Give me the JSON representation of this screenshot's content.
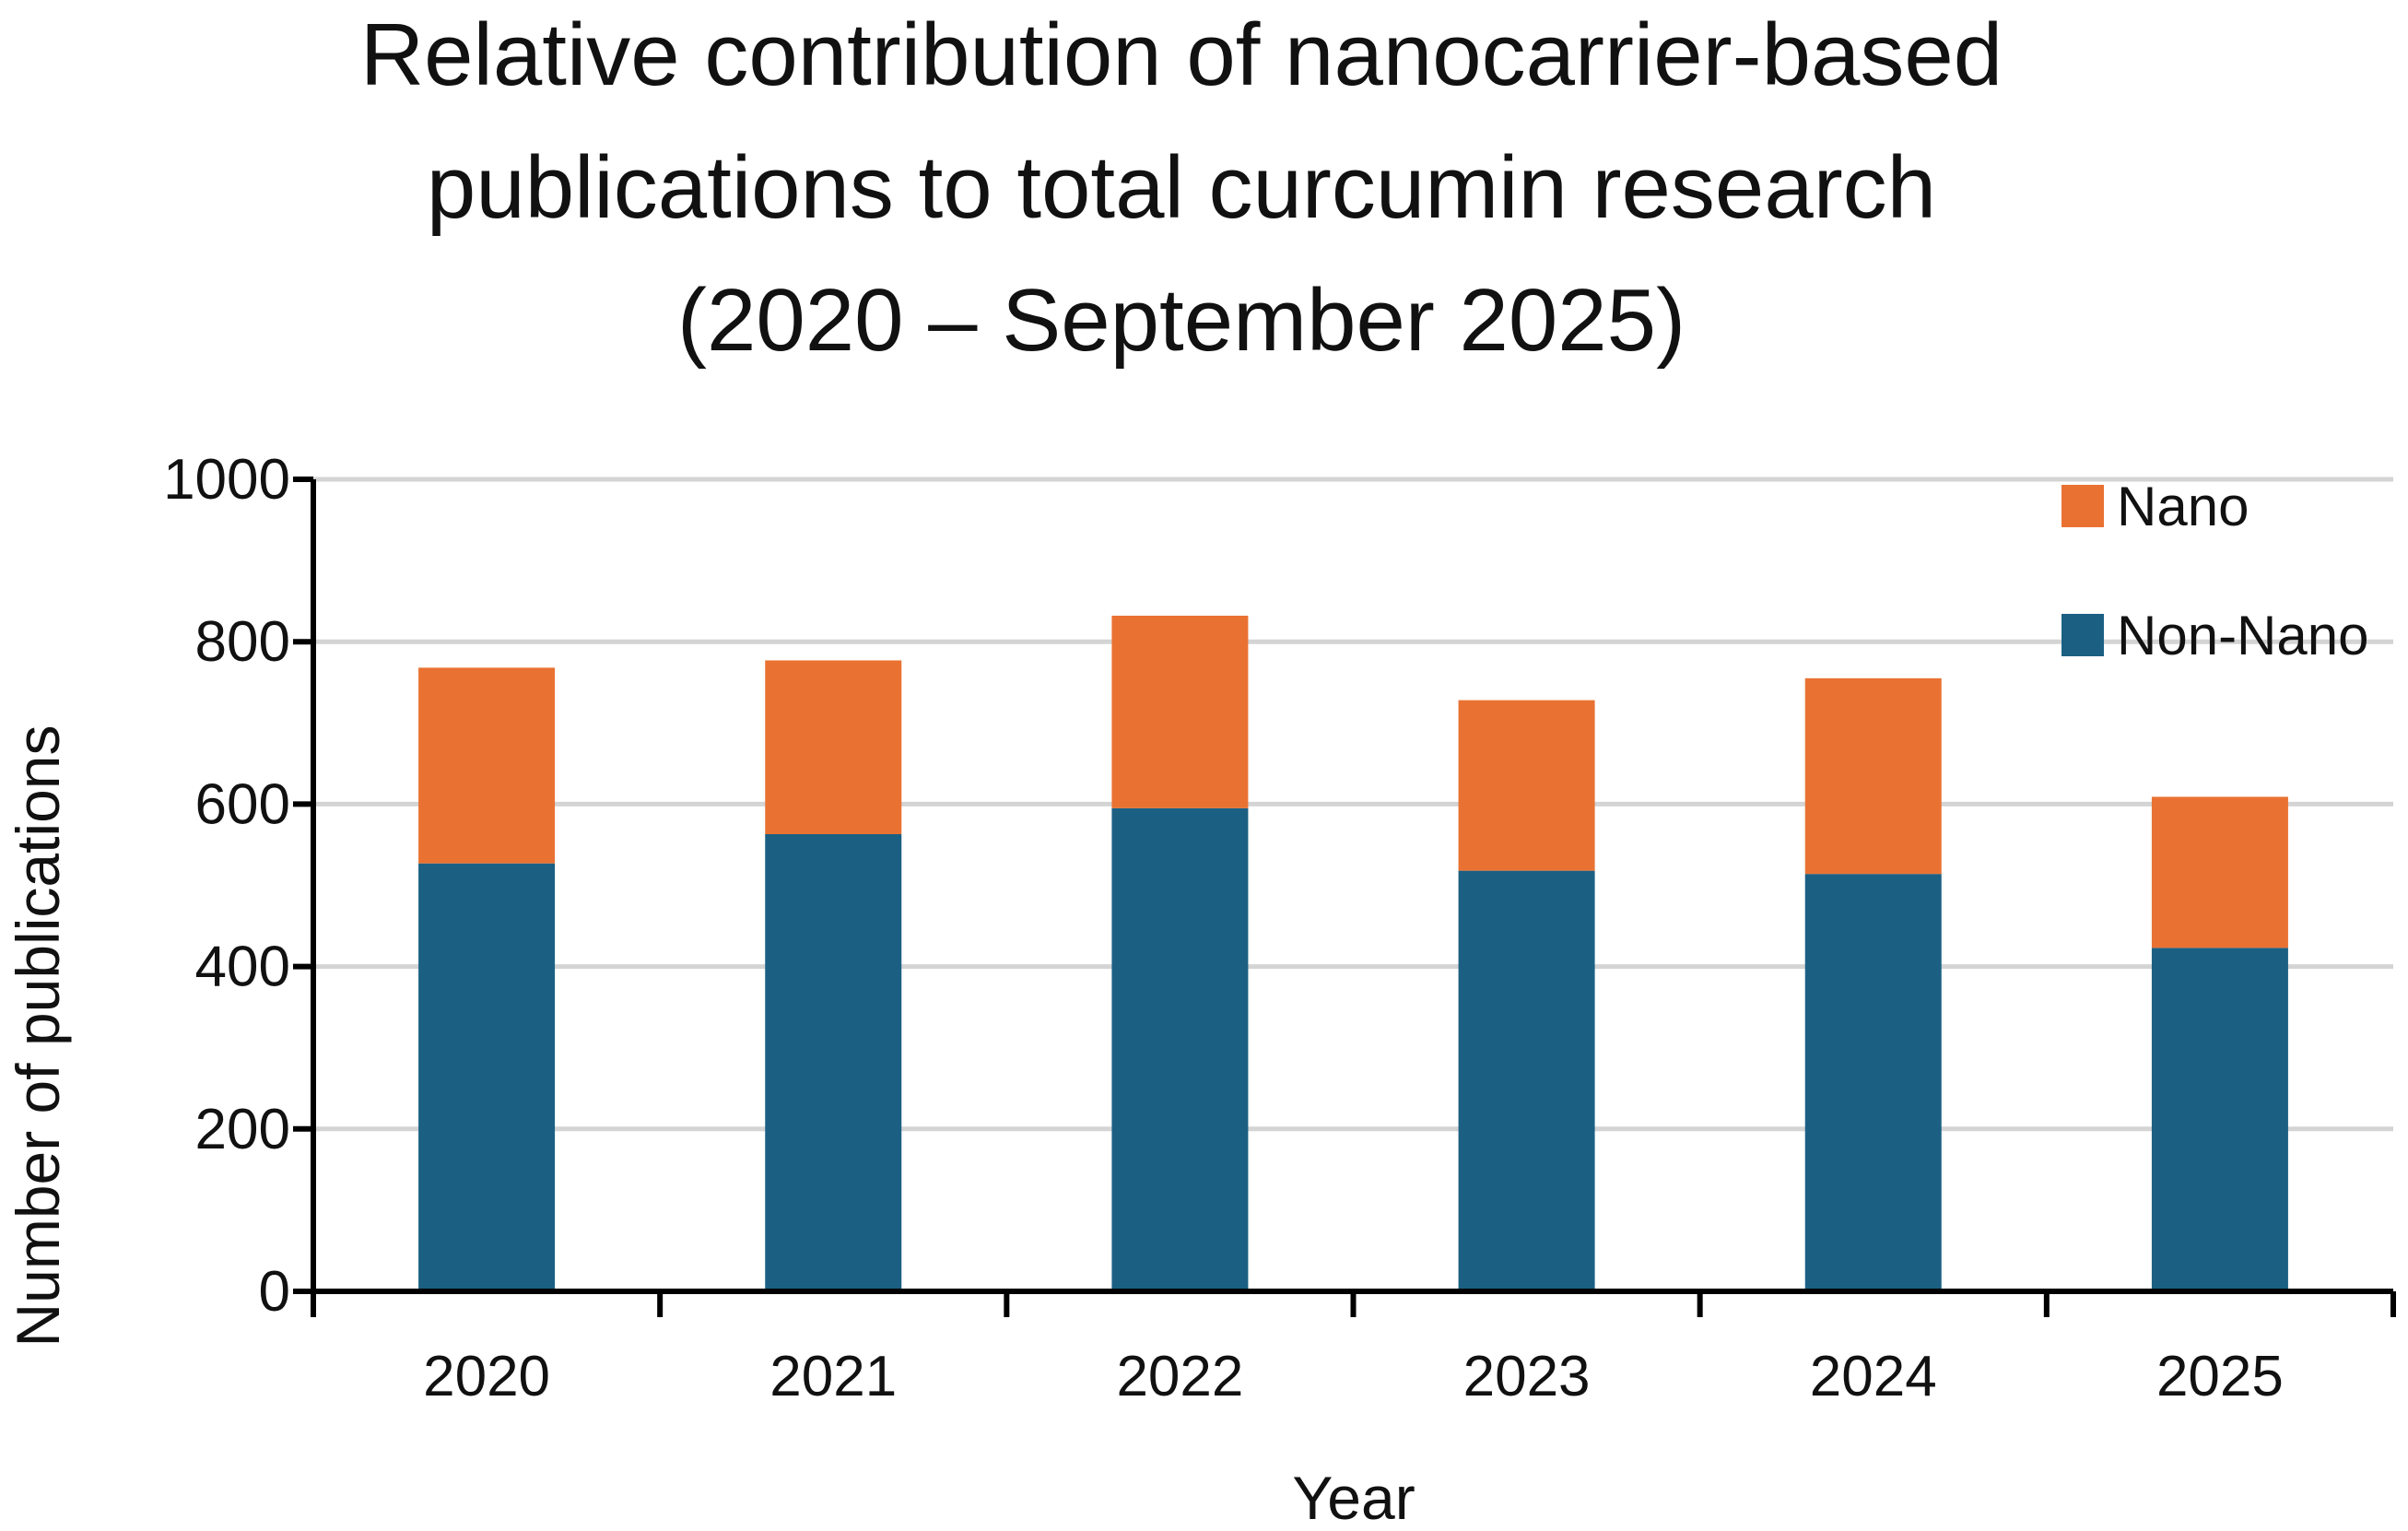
{
  "chart_data": {
    "type": "bar",
    "stacked": true,
    "title_lines": [
      "Relative contribution of nanocarrier-based",
      "publications to total curcumin research",
      "(2020 – September 2025)"
    ],
    "xlabel": "Year",
    "ylabel": "Number of publications",
    "categories": [
      "2020",
      "2021",
      "2022",
      "2023",
      "2024",
      "2025"
    ],
    "series": [
      {
        "name": "Non-Nano",
        "color": "#1b6083",
        "values": [
          527,
          563,
          595,
          518,
          514,
          423
        ]
      },
      {
        "name": "Nano",
        "color": "#e97232",
        "values": [
          241,
          214,
          237,
          210,
          241,
          186
        ]
      }
    ],
    "ylim": [
      0,
      1000
    ],
    "yticks": [
      0,
      200,
      400,
      600,
      800,
      1000
    ],
    "grid": true,
    "legend_position": "top-right"
  }
}
